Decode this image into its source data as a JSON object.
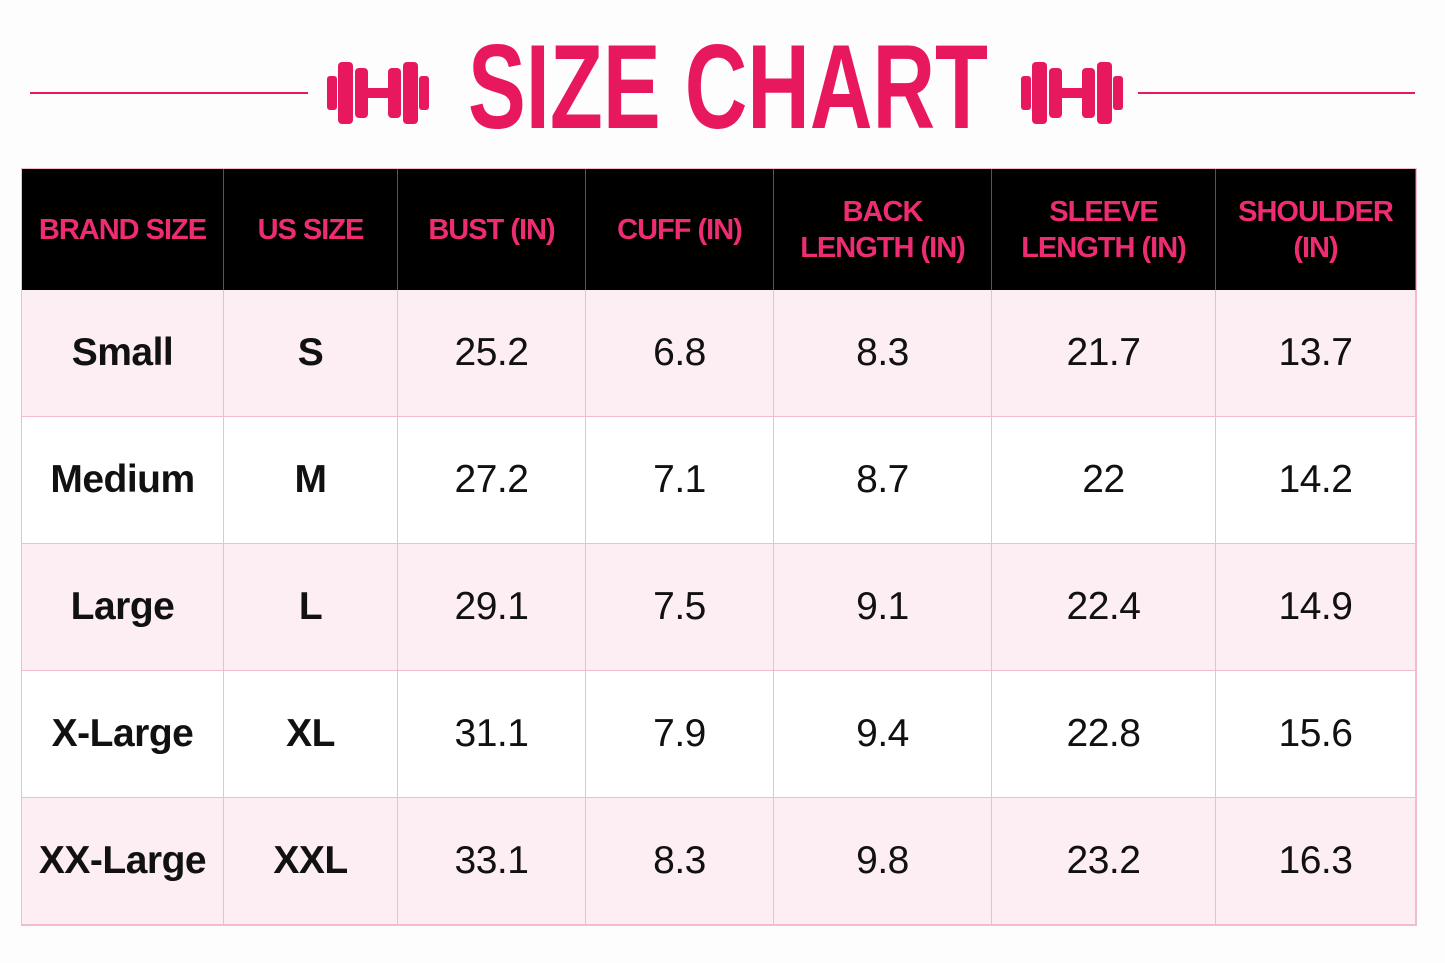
{
  "header": {
    "title": "SIZE CHART"
  },
  "table": {
    "columns": [
      [
        "BRAND SIZE"
      ],
      [
        "US SIZE"
      ],
      [
        "BUST (IN)"
      ],
      [
        "CUFF (IN)"
      ],
      [
        "BACK",
        "LENGTH (IN)"
      ],
      [
        "SLEEVE",
        "LENGTH (IN)"
      ],
      [
        "SHOULDER",
        "(IN)"
      ]
    ],
    "rows": [
      [
        "Small",
        "S",
        25.2,
        6.8,
        8.3,
        21.7,
        13.7
      ],
      [
        "Medium",
        "M",
        27.2,
        7.1,
        8.7,
        22,
        14.2
      ],
      [
        "Large",
        "L",
        29.1,
        7.5,
        9.1,
        22.4,
        14.9
      ],
      [
        "X-Large",
        "XL",
        31.1,
        7.9,
        9.4,
        22.8,
        15.6
      ],
      [
        "XX-Large",
        "XXL",
        33.1,
        8.3,
        9.8,
        23.2,
        16.3
      ]
    ]
  }
}
